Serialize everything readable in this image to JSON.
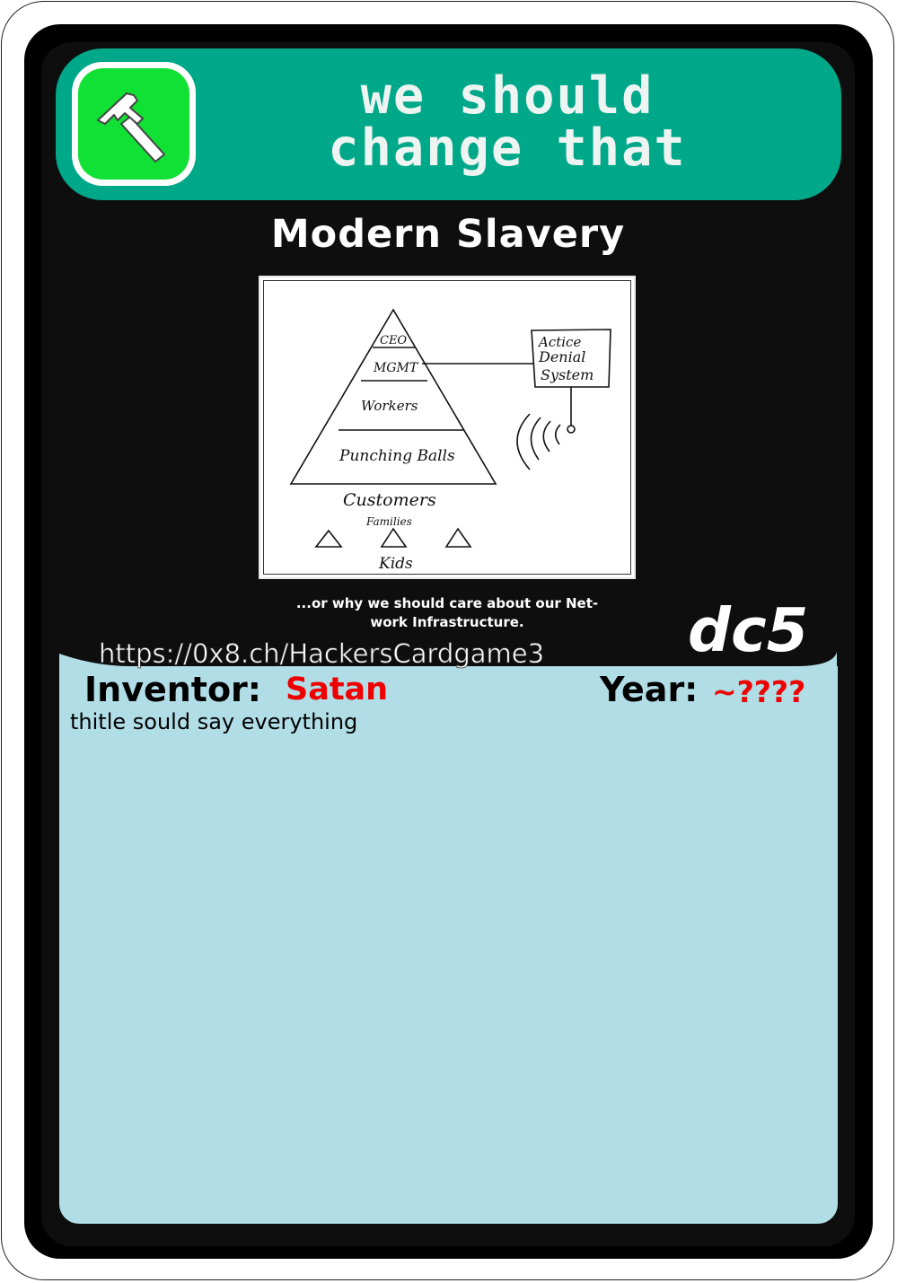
{
  "header": {
    "title_line1": "we should",
    "title_line2": "change that"
  },
  "card": {
    "name": "Modern Slavery",
    "caption_line1": "...or why we should care about our Net-",
    "caption_line2": "work Infrastructure.",
    "edition": "dc5",
    "url": "https://0x8.ch/HackersCardgame3"
  },
  "meta": {
    "inventor_label": "Inventor:",
    "inventor": "Satan",
    "year_label": "Year:",
    "year": "~????",
    "description": "thitle sould say everything"
  },
  "illustration": {
    "levels": [
      "CEO",
      "MGMT",
      "Workers",
      "Punching Balls"
    ],
    "box_lines": [
      "Actice",
      "Denial",
      "System"
    ],
    "customers": "Customers",
    "families": "Families",
    "kids": "Kids"
  },
  "icons": {
    "category": "hammer-icon"
  },
  "colors": {
    "header": "#00a88a",
    "badge": "#11e034",
    "panel": "#b1dde6",
    "accent_red": "#ee0000"
  }
}
